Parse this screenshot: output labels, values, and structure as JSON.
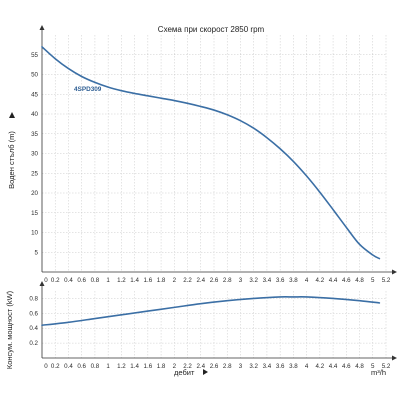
{
  "colors": {
    "curve": "#3b6fa5",
    "grid": "#c9c9c9",
    "axis": "#333333"
  },
  "chart_data": [
    {
      "type": "line",
      "title": "Схема при скорост 2850 rpm",
      "ylabel": "Воден стълб (m)",
      "xlim": [
        0,
        5.2
      ],
      "ylim": [
        0,
        60
      ],
      "grid": true,
      "x_ticks": [
        "0.2",
        "0.4",
        "0.6",
        "0.8",
        "1",
        "1.2",
        "1.4",
        "1.6",
        "1.8",
        "2",
        "2.2",
        "2.4",
        "2.6",
        "2.8",
        "3",
        "3.2",
        "3.4",
        "3.6",
        "3.8",
        "4",
        "4.2",
        "4.4",
        "4.6",
        "4.8",
        "5",
        "5.2"
      ],
      "y_ticks": [
        "5",
        "10",
        "15",
        "20",
        "25",
        "30",
        "35",
        "40",
        "45",
        "50",
        "55"
      ],
      "series": [
        {
          "name": "4SPD309",
          "x": [
            0,
            0.2,
            0.4,
            0.6,
            0.8,
            1.0,
            1.2,
            1.4,
            1.6,
            1.8,
            2.0,
            2.2,
            2.4,
            2.6,
            2.8,
            3.0,
            3.2,
            3.4,
            3.6,
            3.8,
            4.0,
            4.2,
            4.4,
            4.6,
            4.8,
            5.0,
            5.1
          ],
          "y": [
            57,
            54,
            51.5,
            49.5,
            48,
            46.8,
            45.9,
            45.2,
            44.6,
            44,
            43.4,
            42.7,
            41.9,
            41,
            39.8,
            38.3,
            36.4,
            34,
            31.2,
            28,
            24.3,
            20.2,
            15.8,
            11.3,
            7,
            4.3,
            3.4
          ]
        }
      ]
    },
    {
      "type": "line",
      "ylabel": "Консум. мощност (kW)",
      "xlabel": "дебит",
      "xunit": "m³/h",
      "xlim": [
        0,
        5.2
      ],
      "ylim": [
        0,
        0.9
      ],
      "grid": true,
      "x_ticks": [
        "0.2",
        "0.4",
        "0.6",
        "0.8",
        "1",
        "1.2",
        "1.4",
        "1.6",
        "1.8",
        "2",
        "2.2",
        "2.4",
        "2.6",
        "2.8",
        "3",
        "3.2",
        "3.4",
        "3.6",
        "3.8",
        "4",
        "4.2",
        "4.4",
        "4.6",
        "4.8",
        "5",
        "5.2"
      ],
      "y_ticks": [
        "0.2",
        "0.4",
        "0.6",
        "0.8"
      ],
      "series": [
        {
          "x": [
            0,
            0.4,
            0.8,
            1.2,
            1.6,
            2.0,
            2.4,
            2.8,
            3.2,
            3.6,
            3.8,
            4.0,
            4.4,
            4.8,
            5.1
          ],
          "y": [
            0.44,
            0.48,
            0.53,
            0.58,
            0.63,
            0.68,
            0.73,
            0.77,
            0.8,
            0.82,
            0.82,
            0.82,
            0.8,
            0.77,
            0.74
          ]
        }
      ]
    }
  ]
}
